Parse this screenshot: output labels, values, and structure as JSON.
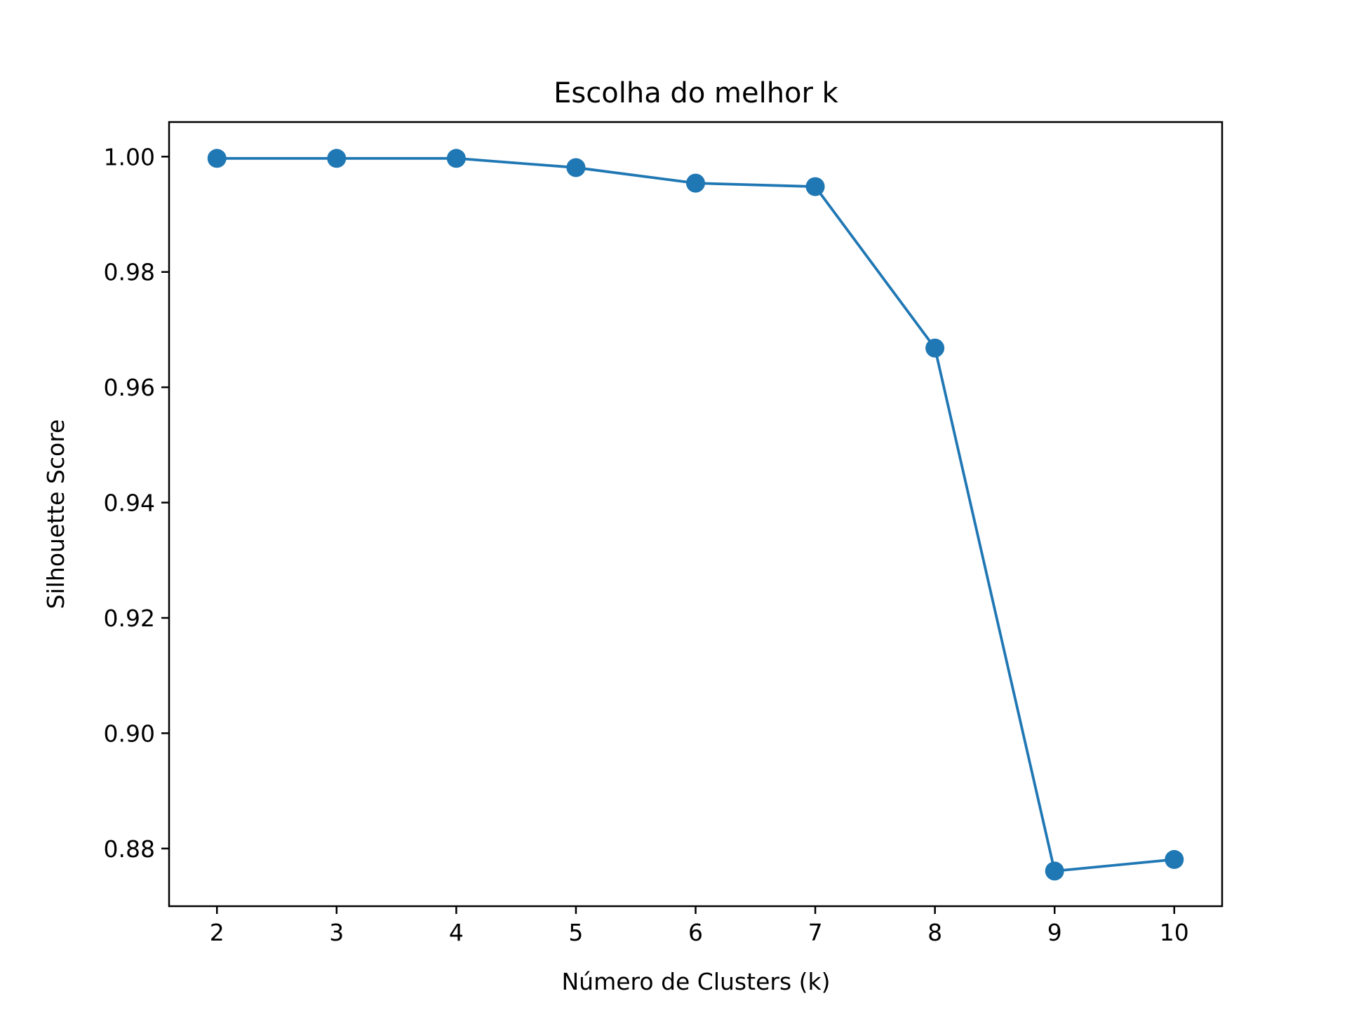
{
  "chart_data": {
    "type": "line",
    "title": "Escolha do melhor k",
    "xlabel": "Número de Clusters (k)",
    "ylabel": "Silhouette Score",
    "x": [
      2,
      3,
      4,
      5,
      6,
      7,
      8,
      9,
      10
    ],
    "series": [
      {
        "color": "#1f77b4",
        "marker": "circle",
        "values": [
          0.9997,
          0.9997,
          0.9997,
          0.9981,
          0.9954,
          0.9948,
          0.9668,
          0.8761,
          0.8781
        ]
      }
    ],
    "xticks": [
      "2",
      "3",
      "4",
      "5",
      "6",
      "7",
      "8",
      "9",
      "10"
    ],
    "yticks": [
      "0.88",
      "0.90",
      "0.92",
      "0.94",
      "0.96",
      "0.98",
      "1.00"
    ],
    "xlim": [
      1.6,
      10.4
    ],
    "ylim": [
      0.87,
      1.006
    ],
    "grid": false,
    "legend": false
  }
}
